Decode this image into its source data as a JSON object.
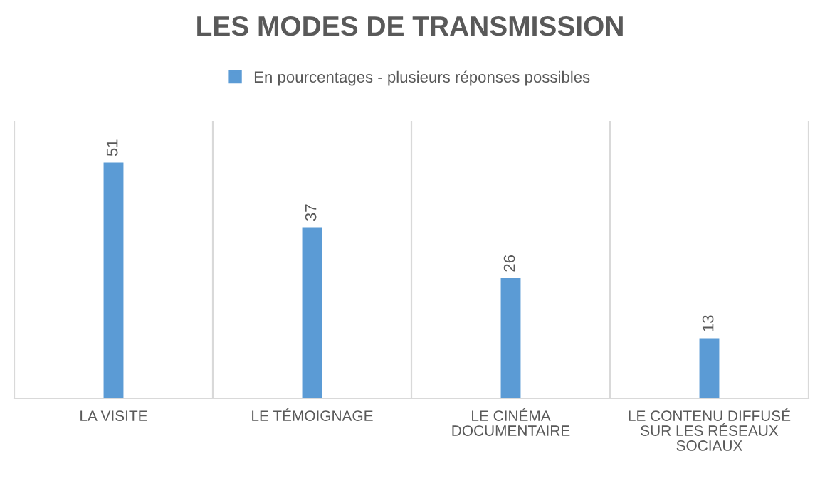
{
  "chart_data": {
    "type": "bar",
    "title": "LES MODES DE TRANSMISSION",
    "categories": [
      "LA VISITE",
      "LE TÉMOIGNAGE",
      "LE CINÉMA DOCUMENTAIRE",
      "LE CONTENU DIFFUSÉ SUR LES RÉSEAUX SOCIAUX"
    ],
    "series": [
      {
        "name": "En pourcentages - plusieurs réponses possibles",
        "color": "#5b9bd5",
        "values": [
          51,
          37,
          26,
          13
        ]
      }
    ],
    "ylim": [
      0,
      60
    ],
    "data_labels": true,
    "grid": "x",
    "legend": "top"
  }
}
